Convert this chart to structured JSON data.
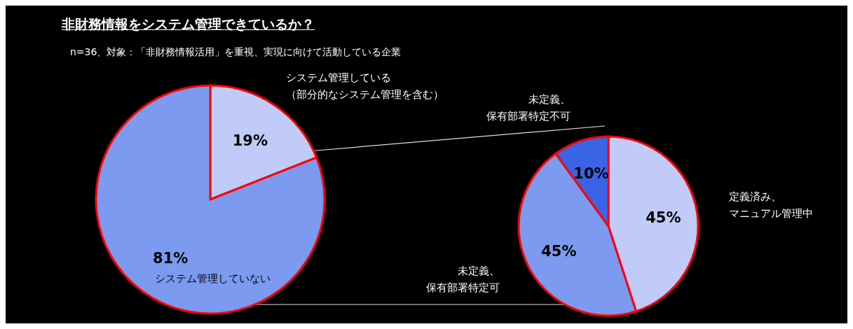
{
  "chart_data": [
    {
      "type": "pie",
      "title": "非財務情報をシステム管理できているか？",
      "subtitle": "n=36、対象：「非財務情報活用」を重視、実現に向けて活動している企業",
      "categories": [
        "システム管理している（部分的なシステム管理を含む）",
        "システム管理していない"
      ],
      "values": [
        19,
        81
      ],
      "value_labels": [
        "19%",
        "81%"
      ],
      "colors": [
        "#c0cbf7",
        "#7b9af0"
      ]
    },
    {
      "type": "pie",
      "categories": [
        "定義済み、マニュアル管理中",
        "未定義、保有部署特定可",
        "未定義、保有部署特定不可"
      ],
      "values": [
        45,
        45,
        10
      ],
      "value_labels": [
        "45%",
        "45%",
        "10%"
      ],
      "colors": [
        "#c0cbf7",
        "#7b9af0",
        "#3a64e6"
      ]
    }
  ]
}
